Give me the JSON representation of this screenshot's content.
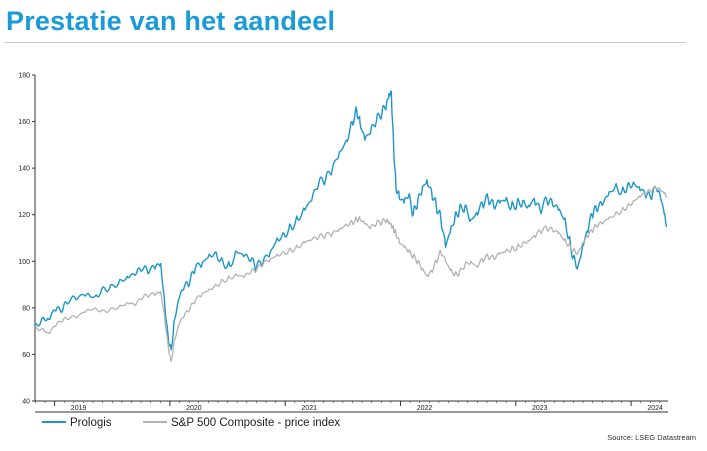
{
  "page": {
    "title": "Prestatie van het aandeel",
    "source": "Source: LSEG Datastream"
  },
  "colors": {
    "title": "#1a9bd7",
    "prologis": "#1d95c9",
    "sp500": "#b3b3b3",
    "axis": "#333333"
  },
  "chart_data": {
    "type": "line",
    "title": "",
    "xlabel": "",
    "ylabel": "",
    "ylim": [
      40,
      180
    ],
    "yticks": [
      40,
      60,
      80,
      100,
      120,
      140,
      160,
      180
    ],
    "xlim": [
      2018.83,
      2024.32
    ],
    "xticks": [
      {
        "label": "2019",
        "x": 2019.0
      },
      {
        "label": "2020",
        "x": 2020.0
      },
      {
        "label": "2021",
        "x": 2021.0
      },
      {
        "label": "2022",
        "x": 2022.0
      },
      {
        "label": "2023",
        "x": 2023.0
      },
      {
        "label": "2024",
        "x": 2024.0
      }
    ],
    "legend": "bottom-left",
    "grid": false,
    "series": [
      {
        "name": "Prologis",
        "color": "#1d95c9",
        "points": [
          [
            2018.83,
            73
          ],
          [
            2018.9,
            76
          ],
          [
            2018.95,
            75
          ],
          [
            2019.0,
            79
          ],
          [
            2019.06,
            78
          ],
          [
            2019.12,
            82
          ],
          [
            2019.2,
            84
          ],
          [
            2019.28,
            86
          ],
          [
            2019.35,
            85
          ],
          [
            2019.42,
            89
          ],
          [
            2019.5,
            90
          ],
          [
            2019.58,
            92
          ],
          [
            2019.64,
            93
          ],
          [
            2019.7,
            94
          ],
          [
            2019.76,
            96
          ],
          [
            2019.82,
            95
          ],
          [
            2019.88,
            98
          ],
          [
            2019.92,
            99
          ],
          [
            2019.95,
            85
          ],
          [
            2019.98,
            70
          ],
          [
            2020.01,
            62
          ],
          [
            2020.04,
            75
          ],
          [
            2020.08,
            84
          ],
          [
            2020.12,
            88
          ],
          [
            2020.17,
            90
          ],
          [
            2020.22,
            97
          ],
          [
            2020.28,
            99
          ],
          [
            2020.34,
            103
          ],
          [
            2020.4,
            104
          ],
          [
            2020.46,
            100
          ],
          [
            2020.52,
            98
          ],
          [
            2020.58,
            104
          ],
          [
            2020.64,
            102
          ],
          [
            2020.7,
            100
          ],
          [
            2020.75,
            97
          ],
          [
            2020.81,
            100
          ],
          [
            2020.87,
            104
          ],
          [
            2020.93,
            110
          ],
          [
            2020.99,
            112
          ],
          [
            2021.05,
            115
          ],
          [
            2021.11,
            118
          ],
          [
            2021.17,
            122
          ],
          [
            2021.23,
            126
          ],
          [
            2021.29,
            133
          ],
          [
            2021.35,
            135
          ],
          [
            2021.41,
            140
          ],
          [
            2021.47,
            147
          ],
          [
            2021.53,
            152
          ],
          [
            2021.58,
            160
          ],
          [
            2021.62,
            165
          ],
          [
            2021.65,
            159
          ],
          [
            2021.69,
            152
          ],
          [
            2021.74,
            155
          ],
          [
            2021.79,
            160
          ],
          [
            2021.84,
            164
          ],
          [
            2021.88,
            168
          ],
          [
            2021.9,
            172
          ],
          [
            2021.92,
            173
          ],
          [
            2021.94,
            150
          ],
          [
            2021.96,
            132
          ],
          [
            2021.99,
            127
          ],
          [
            2022.03,
            125
          ],
          [
            2022.07,
            128
          ],
          [
            2022.11,
            120
          ],
          [
            2022.15,
            126
          ],
          [
            2022.19,
            132
          ],
          [
            2022.23,
            135
          ],
          [
            2022.27,
            130
          ],
          [
            2022.31,
            124
          ],
          [
            2022.35,
            118
          ],
          [
            2022.39,
            106
          ],
          [
            2022.43,
            112
          ],
          [
            2022.47,
            118
          ],
          [
            2022.51,
            122
          ],
          [
            2022.56,
            124
          ],
          [
            2022.61,
            118
          ],
          [
            2022.66,
            121
          ],
          [
            2022.71,
            125
          ],
          [
            2022.76,
            127
          ],
          [
            2022.81,
            123
          ],
          [
            2022.86,
            125
          ],
          [
            2022.91,
            126
          ],
          [
            2022.96,
            123
          ],
          [
            2023.01,
            125
          ],
          [
            2023.06,
            126
          ],
          [
            2023.11,
            124
          ],
          [
            2023.16,
            127
          ],
          [
            2023.21,
            122
          ],
          [
            2023.27,
            126
          ],
          [
            2023.32,
            124
          ],
          [
            2023.37,
            122
          ],
          [
            2023.42,
            118
          ],
          [
            2023.46,
            110
          ],
          [
            2023.5,
            102
          ],
          [
            2023.54,
            98
          ],
          [
            2023.58,
            107
          ],
          [
            2023.62,
            113
          ],
          [
            2023.66,
            120
          ],
          [
            2023.7,
            122
          ],
          [
            2023.75,
            124
          ],
          [
            2023.8,
            128
          ],
          [
            2023.86,
            132
          ],
          [
            2023.92,
            130
          ],
          [
            2023.97,
            133
          ],
          [
            2024.02,
            134
          ],
          [
            2024.07,
            132
          ],
          [
            2024.12,
            129
          ],
          [
            2024.17,
            127
          ],
          [
            2024.22,
            131
          ],
          [
            2024.26,
            126
          ],
          [
            2024.29,
            120
          ],
          [
            2024.31,
            115
          ]
        ]
      },
      {
        "name": "S&P 500 Composite - price index",
        "color": "#b3b3b3",
        "points": [
          [
            2018.83,
            72
          ],
          [
            2018.9,
            71
          ],
          [
            2018.95,
            69
          ],
          [
            2019.0,
            72
          ],
          [
            2019.06,
            74
          ],
          [
            2019.12,
            75
          ],
          [
            2019.2,
            76
          ],
          [
            2019.28,
            79
          ],
          [
            2019.35,
            80
          ],
          [
            2019.42,
            79
          ],
          [
            2019.5,
            80
          ],
          [
            2019.58,
            81
          ],
          [
            2019.64,
            82
          ],
          [
            2019.7,
            81
          ],
          [
            2019.76,
            84
          ],
          [
            2019.82,
            85
          ],
          [
            2019.88,
            86
          ],
          [
            2019.92,
            87
          ],
          [
            2019.95,
            78
          ],
          [
            2019.98,
            66
          ],
          [
            2020.01,
            57
          ],
          [
            2020.04,
            66
          ],
          [
            2020.08,
            73
          ],
          [
            2020.12,
            76
          ],
          [
            2020.17,
            79
          ],
          [
            2020.22,
            83
          ],
          [
            2020.28,
            86
          ],
          [
            2020.34,
            88
          ],
          [
            2020.4,
            90
          ],
          [
            2020.46,
            92
          ],
          [
            2020.52,
            93
          ],
          [
            2020.58,
            94
          ],
          [
            2020.64,
            93
          ],
          [
            2020.7,
            95
          ],
          [
            2020.75,
            96
          ],
          [
            2020.81,
            99
          ],
          [
            2020.87,
            101
          ],
          [
            2020.93,
            103
          ],
          [
            2020.99,
            104
          ],
          [
            2021.05,
            105
          ],
          [
            2021.11,
            106
          ],
          [
            2021.17,
            108
          ],
          [
            2021.23,
            109
          ],
          [
            2021.29,
            110
          ],
          [
            2021.35,
            111
          ],
          [
            2021.41,
            112
          ],
          [
            2021.47,
            114
          ],
          [
            2021.53,
            116
          ],
          [
            2021.58,
            117
          ],
          [
            2021.62,
            118
          ],
          [
            2021.65,
            118
          ],
          [
            2021.69,
            116
          ],
          [
            2021.74,
            114
          ],
          [
            2021.79,
            116
          ],
          [
            2021.84,
            117
          ],
          [
            2021.88,
            118
          ],
          [
            2021.9,
            117
          ],
          [
            2021.92,
            116
          ],
          [
            2021.94,
            114
          ],
          [
            2021.96,
            112
          ],
          [
            2021.99,
            108
          ],
          [
            2022.03,
            106
          ],
          [
            2022.07,
            104
          ],
          [
            2022.11,
            102
          ],
          [
            2022.15,
            100
          ],
          [
            2022.19,
            97
          ],
          [
            2022.23,
            94
          ],
          [
            2022.27,
            96
          ],
          [
            2022.31,
            100
          ],
          [
            2022.35,
            104
          ],
          [
            2022.39,
            100
          ],
          [
            2022.43,
            96
          ],
          [
            2022.47,
            94
          ],
          [
            2022.51,
            95
          ],
          [
            2022.56,
            99
          ],
          [
            2022.61,
            100
          ],
          [
            2022.66,
            98
          ],
          [
            2022.71,
            101
          ],
          [
            2022.76,
            102
          ],
          [
            2022.81,
            101
          ],
          [
            2022.86,
            103
          ],
          [
            2022.91,
            104
          ],
          [
            2022.96,
            105
          ],
          [
            2023.01,
            106
          ],
          [
            2023.06,
            108
          ],
          [
            2023.11,
            109
          ],
          [
            2023.16,
            111
          ],
          [
            2023.21,
            113
          ],
          [
            2023.27,
            114
          ],
          [
            2023.32,
            113
          ],
          [
            2023.37,
            112
          ],
          [
            2023.42,
            109
          ],
          [
            2023.46,
            107
          ],
          [
            2023.5,
            105
          ],
          [
            2023.54,
            104
          ],
          [
            2023.58,
            108
          ],
          [
            2023.62,
            111
          ],
          [
            2023.66,
            113
          ],
          [
            2023.7,
            115
          ],
          [
            2023.75,
            116
          ],
          [
            2023.8,
            118
          ],
          [
            2023.86,
            120
          ],
          [
            2023.92,
            122
          ],
          [
            2023.97,
            124
          ],
          [
            2024.02,
            126
          ],
          [
            2024.07,
            128
          ],
          [
            2024.12,
            129
          ],
          [
            2024.17,
            130
          ],
          [
            2024.22,
            131
          ],
          [
            2024.26,
            130
          ],
          [
            2024.29,
            129
          ],
          [
            2024.31,
            128
          ]
        ]
      }
    ]
  }
}
